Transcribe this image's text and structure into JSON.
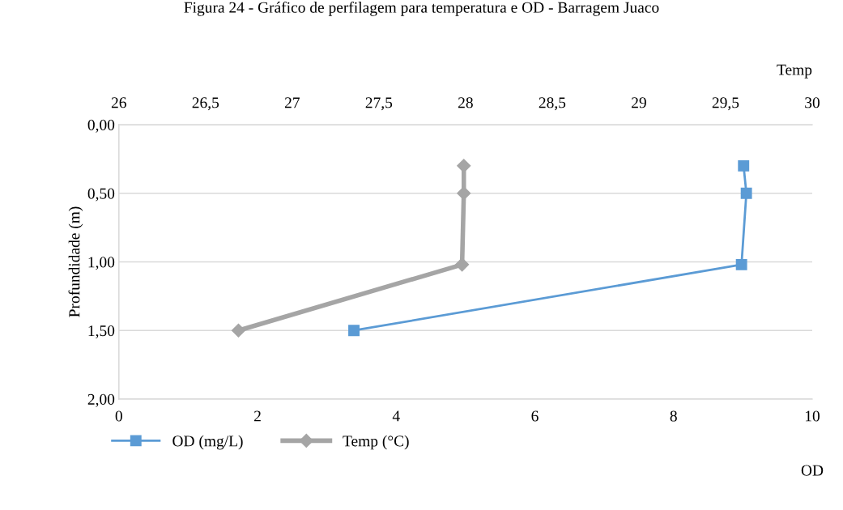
{
  "chart_data": {
    "type": "line",
    "title": "Figura 24 - Gráfico de perfilagem para temperatura e OD - Barragem Juaco",
    "ylabel": "Profundidade (m)",
    "xlabel": "OD",
    "x2label": "Temp",
    "ylim": [
      2.0,
      0.0
    ],
    "yticks": [
      {
        "value": 0.0,
        "label": "0,00"
      },
      {
        "value": 0.5,
        "label": "0,50"
      },
      {
        "value": 1.0,
        "label": "1,00"
      },
      {
        "value": 1.5,
        "label": "1,50"
      },
      {
        "value": 2.0,
        "label": "2,00"
      }
    ],
    "xlim": [
      0,
      10
    ],
    "xticks": [
      0,
      2,
      4,
      6,
      8,
      10
    ],
    "x2lim": [
      26,
      30
    ],
    "x2ticks": [
      26,
      {
        "value": 26.5,
        "label": "26,5"
      },
      27,
      {
        "value": 27.5,
        "label": "27,5"
      },
      28,
      {
        "value": 28.5,
        "label": "28,5"
      },
      29,
      {
        "value": 29.5,
        "label": "29,5"
      },
      30
    ],
    "grid": "y",
    "legend": "bottom",
    "series": [
      {
        "name": "OD (mg/L)",
        "color": "#5b9bd5",
        "marker": "square",
        "x": [
          9.01,
          9.05,
          8.98,
          3.39
        ],
        "values": [
          0.3,
          0.5,
          1.02,
          1.5
        ]
      },
      {
        "name": "Temp (°C)",
        "color": "#a5a5a5",
        "marker": "diamond",
        "axis": "x2",
        "x": [
          27.99,
          27.99,
          27.98,
          26.69
        ],
        "values": [
          0.3,
          0.5,
          1.02,
          1.5
        ]
      }
    ]
  }
}
